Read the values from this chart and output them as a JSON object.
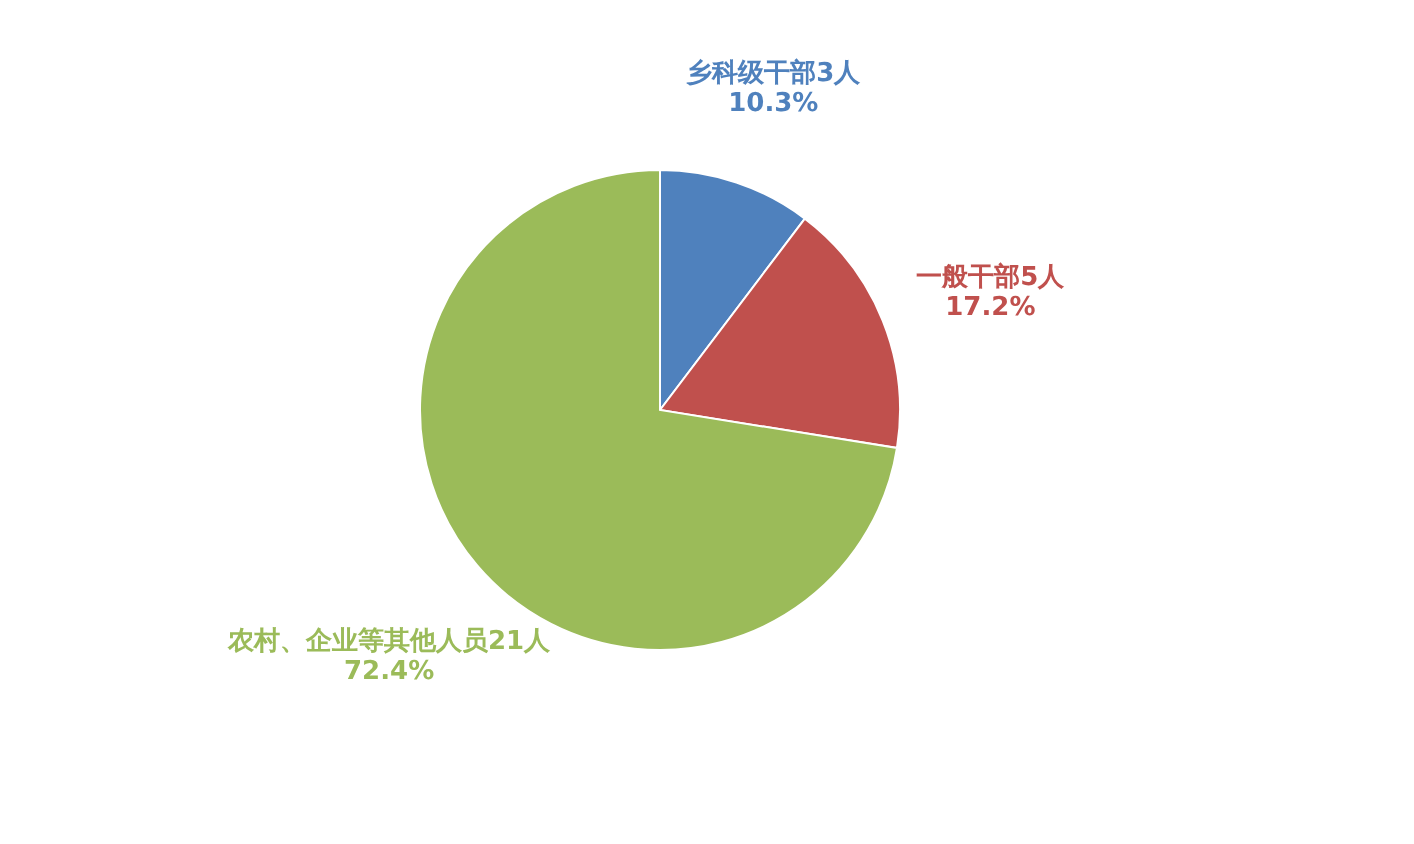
{
  "chart_data": {
    "type": "pie",
    "categories": [
      "乡科级干部3人",
      "一般干部5人",
      "农村、企业等其他人员21人"
    ],
    "values": [
      10.3,
      17.2,
      72.4
    ],
    "value_labels": [
      "10.3%",
      "17.2%",
      "72.4%"
    ],
    "colors": [
      "#4f81bd",
      "#c0504d",
      "#9bbb59"
    ],
    "legend": false
  }
}
